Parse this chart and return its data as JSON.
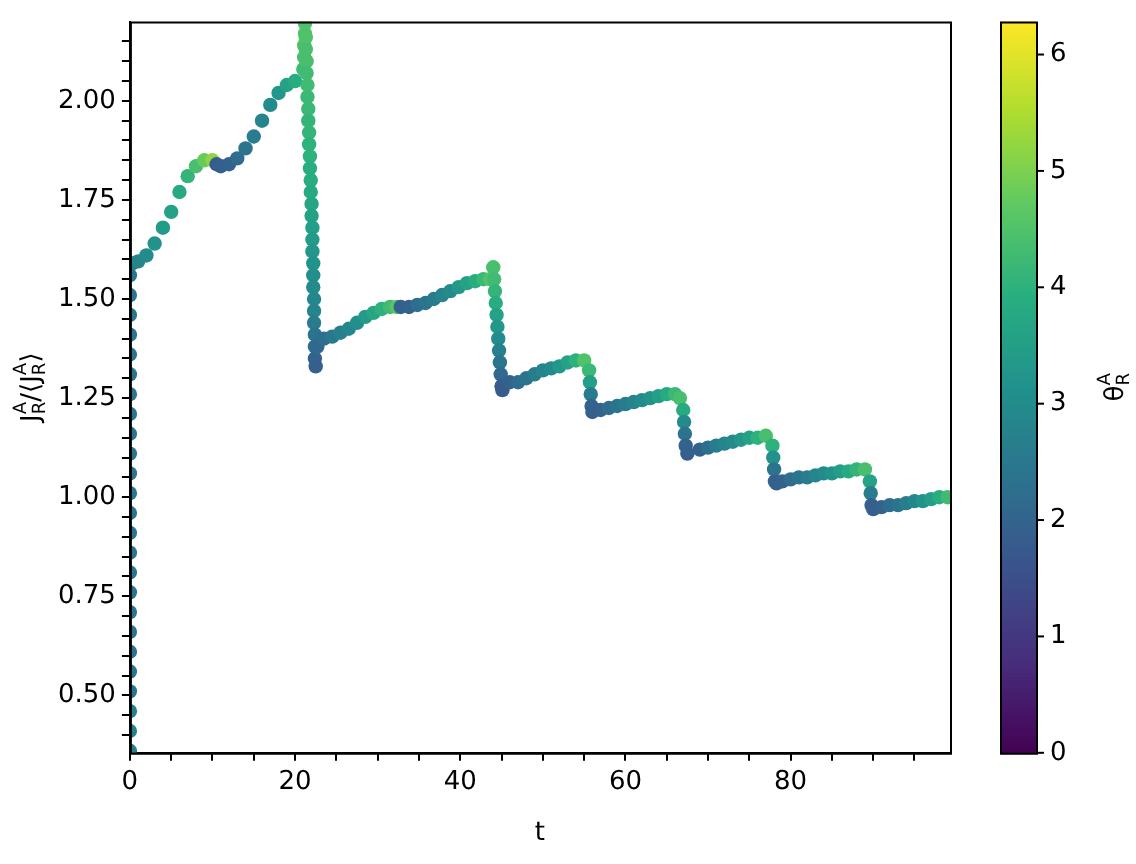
{
  "chart_data": {
    "type": "scatter",
    "xlabel": "t",
    "ylabel": "J$_{R}$$^{A}$/⟨J$_{R}$$^{A}$⟩",
    "clabel": "θ$_{R}$$^{A}$",
    "x": [
      0,
      0,
      0,
      0,
      0,
      0,
      0,
      0,
      0,
      0,
      0,
      0,
      0,
      0,
      0,
      0,
      0,
      0,
      0,
      0,
      0,
      0,
      0,
      0,
      0,
      0.3,
      1,
      2,
      3,
      4,
      5,
      6,
      7,
      8,
      9,
      10,
      10.5,
      11,
      12,
      13,
      14,
      15,
      16,
      17,
      18,
      19,
      20,
      21.0,
      21.1,
      21.1,
      21.2,
      21.2,
      21.3,
      21.3,
      21.4,
      21.4,
      21.5,
      21.5,
      21.6,
      21.6,
      21.7,
      21.7,
      21.8,
      21.8,
      21.9,
      21.9,
      22.0,
      22.0,
      22.1,
      22.1,
      22.1,
      22.2,
      22.2,
      22.2,
      22.3,
      22.3,
      22.3,
      22.4,
      22.4,
      22.4,
      22.5,
      22.7,
      23.5,
      24.5,
      25.5,
      26.5,
      27.5,
      28.5,
      29.5,
      30.5,
      31.5,
      32.3,
      32.8,
      33.8,
      34.8,
      35.8,
      36.8,
      37.8,
      38.8,
      39.8,
      40.8,
      41.8,
      42.8,
      43.6,
      44,
      44.1,
      44.2,
      44.3,
      44.4,
      44.5,
      44.6,
      44.7,
      44.8,
      44.9,
      45,
      45.1,
      46,
      47,
      48,
      49,
      50,
      51,
      52,
      53,
      54,
      55,
      55.6,
      55.7,
      55.8,
      55.9,
      56,
      57,
      58,
      59,
      60,
      61,
      62,
      63,
      64,
      65,
      66,
      66.6,
      67,
      67.1,
      67.2,
      67.3,
      67.5,
      69,
      70,
      71,
      72,
      73,
      74,
      75,
      76,
      77,
      77.8,
      77.9,
      78,
      78.1,
      78.3,
      79,
      80,
      81,
      82,
      83,
      84,
      85,
      86,
      87,
      88,
      89,
      89.6,
      89.7,
      89.8,
      90,
      91,
      92,
      93,
      94,
      95,
      96,
      97,
      98,
      99
    ],
    "values": [
      0.36,
      0.41,
      0.46,
      0.51,
      0.56,
      0.61,
      0.66,
      0.71,
      0.76,
      0.81,
      0.86,
      0.91,
      0.96,
      1.01,
      1.06,
      1.11,
      1.16,
      1.21,
      1.26,
      1.31,
      1.36,
      1.41,
      1.46,
      1.51,
      1.56,
      1.59,
      1.595,
      1.61,
      1.64,
      1.68,
      1.72,
      1.77,
      1.81,
      1.835,
      1.85,
      1.85,
      1.84,
      1.835,
      1.84,
      1.855,
      1.88,
      1.91,
      1.95,
      1.99,
      2.02,
      2.04,
      2.05,
      2.08,
      2.11,
      2.14,
      2.17,
      2.195,
      2.16,
      2.13,
      2.1,
      2.07,
      2.04,
      2.01,
      1.98,
      1.95,
      1.92,
      1.89,
      1.86,
      1.83,
      1.8,
      1.77,
      1.74,
      1.71,
      1.68,
      1.65,
      1.62,
      1.59,
      1.56,
      1.53,
      1.5,
      1.47,
      1.44,
      1.41,
      1.38,
      1.35,
      1.33,
      1.38,
      1.4,
      1.405,
      1.415,
      1.425,
      1.44,
      1.455,
      1.465,
      1.475,
      1.48,
      1.48,
      1.48,
      1.48,
      1.485,
      1.49,
      1.5,
      1.51,
      1.52,
      1.53,
      1.54,
      1.545,
      1.55,
      1.55,
      1.58,
      1.55,
      1.52,
      1.49,
      1.46,
      1.43,
      1.4,
      1.37,
      1.34,
      1.31,
      1.28,
      1.27,
      1.29,
      1.29,
      1.3,
      1.31,
      1.32,
      1.325,
      1.33,
      1.34,
      1.345,
      1.345,
      1.32,
      1.29,
      1.26,
      1.23,
      1.215,
      1.22,
      1.225,
      1.23,
      1.235,
      1.24,
      1.245,
      1.25,
      1.255,
      1.26,
      1.26,
      1.25,
      1.22,
      1.19,
      1.16,
      1.13,
      1.11,
      1.12,
      1.125,
      1.13,
      1.135,
      1.14,
      1.145,
      1.15,
      1.15,
      1.155,
      1.13,
      1.1,
      1.07,
      1.04,
      1.035,
      1.04,
      1.045,
      1.05,
      1.05,
      1.055,
      1.06,
      1.06,
      1.065,
      1.065,
      1.07,
      1.07,
      1.04,
      1.01,
      0.98,
      0.97,
      0.975,
      0.98,
      0.98,
      0.985,
      0.99,
      0.99,
      0.995,
      1.0,
      1.0
    ],
    "cvalues": [
      2.7,
      2.7,
      2.7,
      2.4,
      2.4,
      2.4,
      2.4,
      2.4,
      2.4,
      2.4,
      2.4,
      2.4,
      2.4,
      2.4,
      2.4,
      2.4,
      2.4,
      2.4,
      2.4,
      2.4,
      2.4,
      2.4,
      2.4,
      2.4,
      2.4,
      2.6,
      2.8,
      3.0,
      3.2,
      3.4,
      3.6,
      3.8,
      4.1,
      4.4,
      4.8,
      5.2,
      1.8,
      1.9,
      2.0,
      2.2,
      2.4,
      2.6,
      2.8,
      3.0,
      3.3,
      3.6,
      3.9,
      4.3,
      4.4,
      4.5,
      4.5,
      4.5,
      4.5,
      4.4,
      4.4,
      4.3,
      4.3,
      4.2,
      4.2,
      4.1,
      4.1,
      4.0,
      4.0,
      3.9,
      3.9,
      3.8,
      3.7,
      3.6,
      3.5,
      3.4,
      3.3,
      3.2,
      3.1,
      3.0,
      2.9,
      2.8,
      2.6,
      2.4,
      2.2,
      2.0,
      1.9,
      2.1,
      2.3,
      2.5,
      2.7,
      2.9,
      3.1,
      3.4,
      3.7,
      4.0,
      4.3,
      4.6,
      1.9,
      2.0,
      2.2,
      2.4,
      2.6,
      2.8,
      3.0,
      3.3,
      3.6,
      3.9,
      4.2,
      4.5,
      4.4,
      4.3,
      4.1,
      3.9,
      3.6,
      3.3,
      3.0,
      2.7,
      2.4,
      2.1,
      1.9,
      1.8,
      2.0,
      2.2,
      2.4,
      2.6,
      2.8,
      3.0,
      3.3,
      3.6,
      4.0,
      4.5,
      4.2,
      3.5,
      2.6,
      2.0,
      1.9,
      2.0,
      2.2,
      2.4,
      2.6,
      2.8,
      3.0,
      3.2,
      3.5,
      3.8,
      4.2,
      4.4,
      3.8,
      3.0,
      2.4,
      2.0,
      1.9,
      2.0,
      2.3,
      2.6,
      2.8,
      3.0,
      3.3,
      3.6,
      4.0,
      4.4,
      4.0,
      3.2,
      2.4,
      2.0,
      1.9,
      2.0,
      2.2,
      2.4,
      2.6,
      2.8,
      3.0,
      3.2,
      3.5,
      3.8,
      4.1,
      4.4,
      3.6,
      2.6,
      2.0,
      1.9,
      2.0,
      2.2,
      2.4,
      2.6,
      2.9,
      3.2,
      3.5,
      3.9,
      4.3
    ],
    "xlim": [
      0,
      99.3
    ],
    "ylim": [
      0.355,
      2.2
    ],
    "xticks": [
      0,
      {
        "value": 5,
        "label": null
      },
      {
        "value": 10,
        "label": null
      },
      {
        "value": 15,
        "label": null
      },
      20,
      {
        "value": 25,
        "label": null
      },
      {
        "value": 30,
        "label": null
      },
      {
        "value": 35,
        "label": null
      },
      40,
      {
        "value": 45,
        "label": null
      },
      {
        "value": 50,
        "label": null
      },
      {
        "value": 55,
        "label": null
      },
      60,
      {
        "value": 65,
        "label": null
      },
      {
        "value": 70,
        "label": null
      },
      {
        "value": 75,
        "label": null
      },
      80,
      {
        "value": 85,
        "label": null
      },
      {
        "value": 90,
        "label": null
      },
      {
        "value": 95,
        "label": null
      }
    ],
    "yticks": [
      {
        "value": 0.4,
        "label": null
      },
      {
        "value": 0.45,
        "label": null
      },
      {
        "value": 0.5,
        "label": "0.50"
      },
      {
        "value": 0.55,
        "label": null
      },
      {
        "value": 0.6,
        "label": null
      },
      {
        "value": 0.65,
        "label": null
      },
      {
        "value": 0.7,
        "label": null
      },
      {
        "value": 0.75,
        "label": "0.75"
      },
      {
        "value": 0.8,
        "label": null
      },
      {
        "value": 0.85,
        "label": null
      },
      {
        "value": 0.9,
        "label": null
      },
      {
        "value": 0.95,
        "label": null
      },
      {
        "value": 1.0,
        "label": "1.00"
      },
      {
        "value": 1.05,
        "label": null
      },
      {
        "value": 1.1,
        "label": null
      },
      {
        "value": 1.15,
        "label": null
      },
      {
        "value": 1.2,
        "label": null
      },
      {
        "value": 1.25,
        "label": "1.25"
      },
      {
        "value": 1.3,
        "label": null
      },
      {
        "value": 1.35,
        "label": null
      },
      {
        "value": 1.4,
        "label": null
      },
      {
        "value": 1.45,
        "label": null
      },
      {
        "value": 1.5,
        "label": "1.50"
      },
      {
        "value": 1.55,
        "label": null
      },
      {
        "value": 1.6,
        "label": null
      },
      {
        "value": 1.65,
        "label": null
      },
      {
        "value": 1.7,
        "label": null
      },
      {
        "value": 1.75,
        "label": "1.75"
      },
      {
        "value": 1.8,
        "label": null
      },
      {
        "value": 1.85,
        "label": null
      },
      {
        "value": 1.9,
        "label": null
      },
      {
        "value": 1.95,
        "label": null
      },
      {
        "value": 2.0,
        "label": "2.00"
      },
      {
        "value": 2.05,
        "label": null
      },
      {
        "value": 2.1,
        "label": null
      },
      {
        "value": 2.15,
        "label": null
      }
    ],
    "clim": [
      0,
      6.283
    ],
    "cticks": [
      0,
      1,
      2,
      3,
      4,
      5,
      6
    ],
    "grid": false,
    "legend": false,
    "marker": "circle"
  }
}
